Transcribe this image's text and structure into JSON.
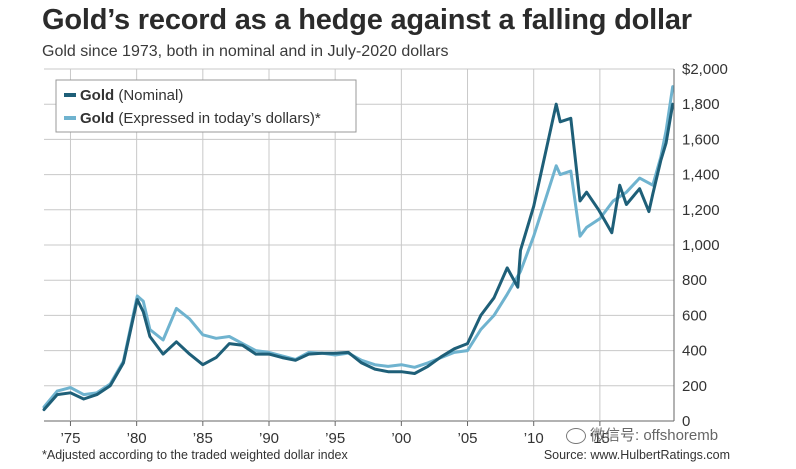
{
  "title": "Gold’s record as a hedge against a falling dollar",
  "subtitle": "Gold since 1973, both in nominal and in July-2020 dollars",
  "footnote": "*Adjusted according to the traded weighted dollar index",
  "source": "Source: www.HulbertRatings.com",
  "watermark": "微信号: offshoremb",
  "colors": {
    "nominal": "#1e5f78",
    "real": "#6fb3cf",
    "grid": "#c8c8c8",
    "axis": "#444444"
  },
  "chart_data": {
    "type": "line",
    "grid": true,
    "legend_position": "top-left",
    "legend": [
      {
        "bold": "Gold",
        "rest": " (Nominal)"
      },
      {
        "bold": "Gold",
        "rest": " (Expressed in today’s dollars)*"
      }
    ],
    "xlim": [
      1973,
      2020.6
    ],
    "ylim": [
      0,
      2000
    ],
    "x_ticks": [
      {
        "value": 1975,
        "label": "’75"
      },
      {
        "value": 1980,
        "label": "’80"
      },
      {
        "value": 1985,
        "label": "’85"
      },
      {
        "value": 1990,
        "label": "’90"
      },
      {
        "value": 1995,
        "label": "’95"
      },
      {
        "value": 2000,
        "label": "’00"
      },
      {
        "value": 2005,
        "label": "’05"
      },
      {
        "value": 2010,
        "label": "’10"
      },
      {
        "value": 2015,
        "label": "’15"
      }
    ],
    "y_ticks": [
      {
        "value": 2000,
        "label": "$2,000"
      },
      {
        "value": 1800,
        "label": "1,800"
      },
      {
        "value": 1600,
        "label": "1,600"
      },
      {
        "value": 1400,
        "label": "1,400"
      },
      {
        "value": 1200,
        "label": "1,200"
      },
      {
        "value": 1000,
        "label": "1,000"
      },
      {
        "value": 800,
        "label": "800"
      },
      {
        "value": 600,
        "label": "600"
      },
      {
        "value": 400,
        "label": "400"
      },
      {
        "value": 200,
        "label": "200"
      },
      {
        "value": 0,
        "label": "0"
      }
    ],
    "series": [
      {
        "name": "Gold (Nominal)",
        "color": "#1e5f78",
        "points": [
          [
            1973,
            65
          ],
          [
            1974,
            150
          ],
          [
            1975,
            160
          ],
          [
            1976,
            125
          ],
          [
            1977,
            150
          ],
          [
            1978,
            200
          ],
          [
            1979,
            330
          ],
          [
            1980.05,
            690
          ],
          [
            1980.5,
            620
          ],
          [
            1981,
            480
          ],
          [
            1982,
            380
          ],
          [
            1983,
            450
          ],
          [
            1984,
            380
          ],
          [
            1985,
            320
          ],
          [
            1986,
            360
          ],
          [
            1987,
            440
          ],
          [
            1988,
            430
          ],
          [
            1989,
            380
          ],
          [
            1990,
            380
          ],
          [
            1991,
            360
          ],
          [
            1992,
            345
          ],
          [
            1993,
            380
          ],
          [
            1994,
            385
          ],
          [
            1995,
            385
          ],
          [
            1996,
            390
          ],
          [
            1997,
            330
          ],
          [
            1998,
            295
          ],
          [
            1999,
            280
          ],
          [
            2000,
            280
          ],
          [
            2001,
            270
          ],
          [
            2002,
            310
          ],
          [
            2003,
            365
          ],
          [
            2004,
            410
          ],
          [
            2005,
            440
          ],
          [
            2006,
            600
          ],
          [
            2007,
            700
          ],
          [
            2008,
            870
          ],
          [
            2008.8,
            760
          ],
          [
            2009,
            970
          ],
          [
            2010,
            1220
          ],
          [
            2011.7,
            1800
          ],
          [
            2012,
            1700
          ],
          [
            2012.8,
            1720
          ],
          [
            2013.5,
            1250
          ],
          [
            2014,
            1300
          ],
          [
            2014.9,
            1200
          ],
          [
            2015.9,
            1070
          ],
          [
            2016.5,
            1340
          ],
          [
            2017,
            1230
          ],
          [
            2018,
            1320
          ],
          [
            2018.7,
            1190
          ],
          [
            2019,
            1290
          ],
          [
            2019.6,
            1480
          ],
          [
            2020,
            1580
          ],
          [
            2020.5,
            1800
          ]
        ]
      },
      {
        "name": "Gold (Expressed in today’s dollars)*",
        "color": "#6fb3cf",
        "points": [
          [
            1973,
            80
          ],
          [
            1974,
            170
          ],
          [
            1975,
            190
          ],
          [
            1976,
            150
          ],
          [
            1977,
            160
          ],
          [
            1978,
            210
          ],
          [
            1979,
            340
          ],
          [
            1980.05,
            710
          ],
          [
            1980.5,
            680
          ],
          [
            1981,
            520
          ],
          [
            1982,
            460
          ],
          [
            1983,
            640
          ],
          [
            1984,
            580
          ],
          [
            1985,
            490
          ],
          [
            1986,
            470
          ],
          [
            1987,
            480
          ],
          [
            1988,
            440
          ],
          [
            1989,
            400
          ],
          [
            1990,
            390
          ],
          [
            1991,
            370
          ],
          [
            1992,
            350
          ],
          [
            1993,
            390
          ],
          [
            1994,
            385
          ],
          [
            1995,
            375
          ],
          [
            1996,
            385
          ],
          [
            1997,
            345
          ],
          [
            1998,
            320
          ],
          [
            1999,
            310
          ],
          [
            2000,
            320
          ],
          [
            2001,
            305
          ],
          [
            2002,
            330
          ],
          [
            2003,
            360
          ],
          [
            2004,
            390
          ],
          [
            2005,
            400
          ],
          [
            2006,
            520
          ],
          [
            2007,
            600
          ],
          [
            2008,
            720
          ],
          [
            2009,
            850
          ],
          [
            2010,
            1050
          ],
          [
            2011.7,
            1450
          ],
          [
            2012,
            1400
          ],
          [
            2012.8,
            1420
          ],
          [
            2013.5,
            1050
          ],
          [
            2014,
            1100
          ],
          [
            2015,
            1150
          ],
          [
            2016,
            1250
          ],
          [
            2017,
            1300
          ],
          [
            2018,
            1380
          ],
          [
            2019,
            1340
          ],
          [
            2019.6,
            1500
          ],
          [
            2020,
            1650
          ],
          [
            2020.5,
            1900
          ]
        ]
      }
    ]
  }
}
